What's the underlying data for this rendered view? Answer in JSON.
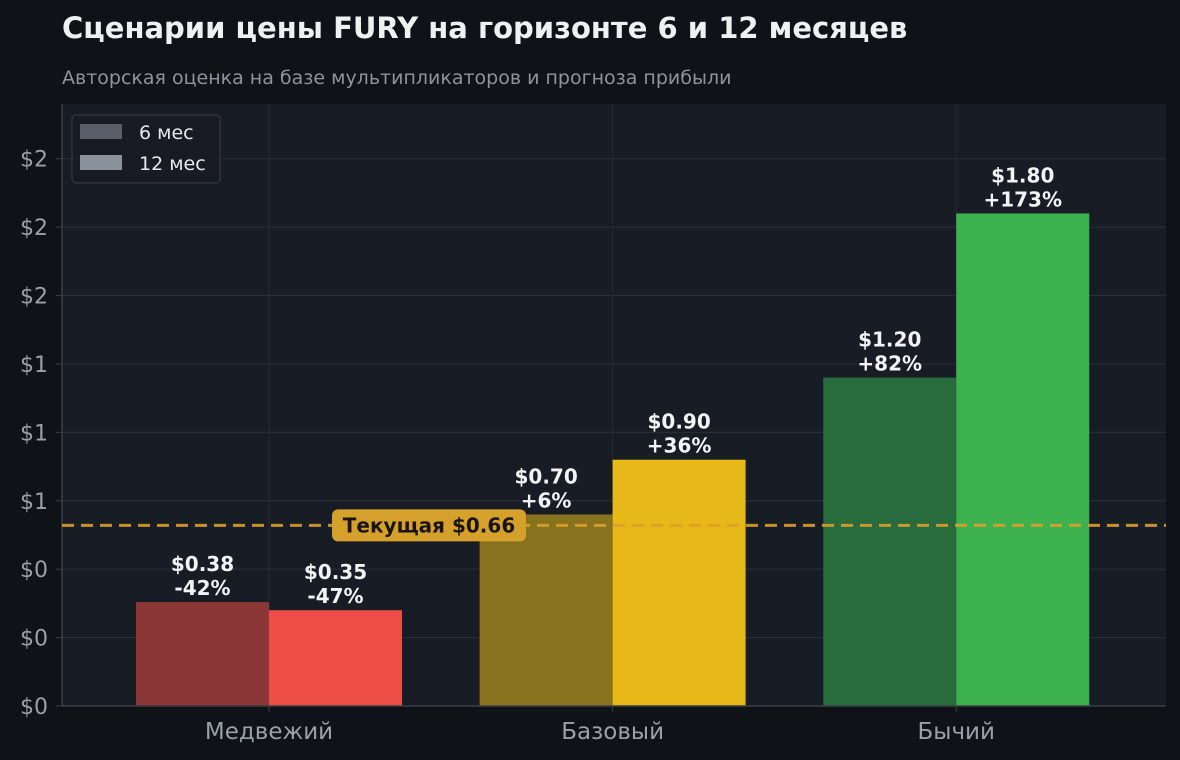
{
  "chart_data": {
    "type": "bar",
    "title": "Сценарии цены FURY на горизонте 6 и 12 месяцев",
    "subtitle": "Авторская оценка на базе мультипликаторов и прогноза прибыли",
    "categories": [
      "Медвежий",
      "Базовый",
      "Бычий"
    ],
    "series": [
      {
        "name": "6 мес",
        "values": [
          0.38,
          0.7,
          1.2
        ],
        "labels": [
          "$0.38",
          "$0.70",
          "$1.20"
        ],
        "changes": [
          "-42%",
          "+6%",
          "+82%"
        ],
        "colors": [
          "#8b3637",
          "#87721d",
          "#286b3c"
        ]
      },
      {
        "name": "12 мес",
        "values": [
          0.35,
          0.9,
          1.8
        ],
        "labels": [
          "$0.35",
          "$0.90",
          "$1.80"
        ],
        "changes": [
          "-47%",
          "+36%",
          "+173%"
        ],
        "colors": [
          "#ec4e46",
          "#e6b818",
          "#3db14d"
        ]
      }
    ],
    "legend_colors": [
      "#5a5e68",
      "#8a929c"
    ],
    "reference_line": {
      "value": 0.66,
      "label": "Текущая $0.66",
      "color": "#dba02c"
    },
    "y_ticks": [
      {
        "value": 0,
        "label": "$0"
      },
      {
        "value": 0.25,
        "label": "$0"
      },
      {
        "value": 0.5,
        "label": "$0"
      },
      {
        "value": 0.75,
        "label": "$1"
      },
      {
        "value": 1.0,
        "label": "$1"
      },
      {
        "value": 1.25,
        "label": "$1"
      },
      {
        "value": 1.5,
        "label": "$2"
      },
      {
        "value": 1.75,
        "label": "$2"
      },
      {
        "value": 2.0,
        "label": "$2"
      }
    ],
    "ylim": [
      0,
      2.2
    ],
    "legend_position": "top-left",
    "grid": true
  }
}
